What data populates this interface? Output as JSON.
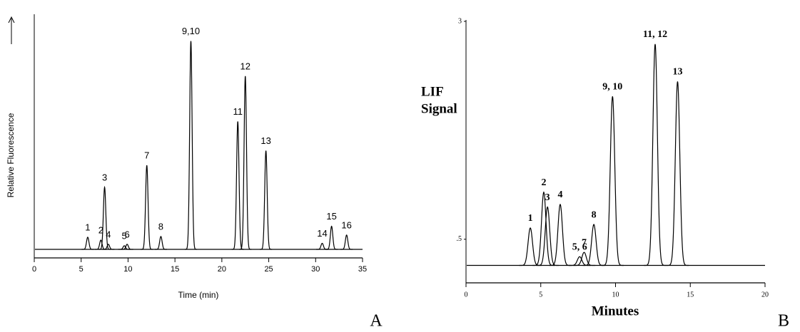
{
  "chart_data": [
    {
      "type": "line",
      "panel": "A",
      "xlabel": "Time (min)",
      "ylabel": [
        "Relative Fluorescence"
      ],
      "xlim": [
        0,
        35
      ],
      "xticks": [
        0,
        5,
        10,
        15,
        20,
        25,
        30,
        35
      ],
      "ylim": [
        0,
        100
      ],
      "yticks": [],
      "baseline": 3.5,
      "color": "#000000",
      "x": [
        5.7,
        7.1,
        7.5,
        7.9,
        9.6,
        9.9,
        12.0,
        13.5,
        16.7,
        21.7,
        22.5,
        24.7,
        30.7,
        31.7,
        33.3
      ],
      "values": [
        8.5,
        7.3,
        29,
        5.6,
        5,
        5.6,
        38,
        8.8,
        89,
        56,
        74.6,
        44,
        6,
        13,
        9.4
      ],
      "labels": [
        "1",
        "2",
        "3",
        "4",
        "5",
        "6",
        "7",
        "8",
        "9,10",
        "11",
        "12",
        "13",
        "14",
        "15",
        "16"
      ]
    },
    {
      "type": "line",
      "panel": "B",
      "xlabel": "Minutes",
      "ylabel": [
        "LIF",
        "Signal"
      ],
      "xlim": [
        0,
        20
      ],
      "xticks": [
        0,
        5,
        10,
        15,
        20
      ],
      "ylim": [
        0,
        3
      ],
      "yticks": [
        {
          "value": 0.5,
          "label": ".5"
        },
        3
      ],
      "baseline": 0.2,
      "color": "#000000",
      "x": [
        4.3,
        5.2,
        5.45,
        6.3,
        7.6,
        7.9,
        8.55,
        9.8,
        12.65,
        14.15
      ],
      "values": [
        0.63,
        1.04,
        0.87,
        0.9,
        0.3,
        0.35,
        0.67,
        2.14,
        2.74,
        2.31
      ],
      "labels": [
        "1",
        "2",
        "3",
        "4",
        "5, 6",
        "7",
        "8",
        "9, 10",
        "11, 12",
        "13"
      ]
    }
  ]
}
